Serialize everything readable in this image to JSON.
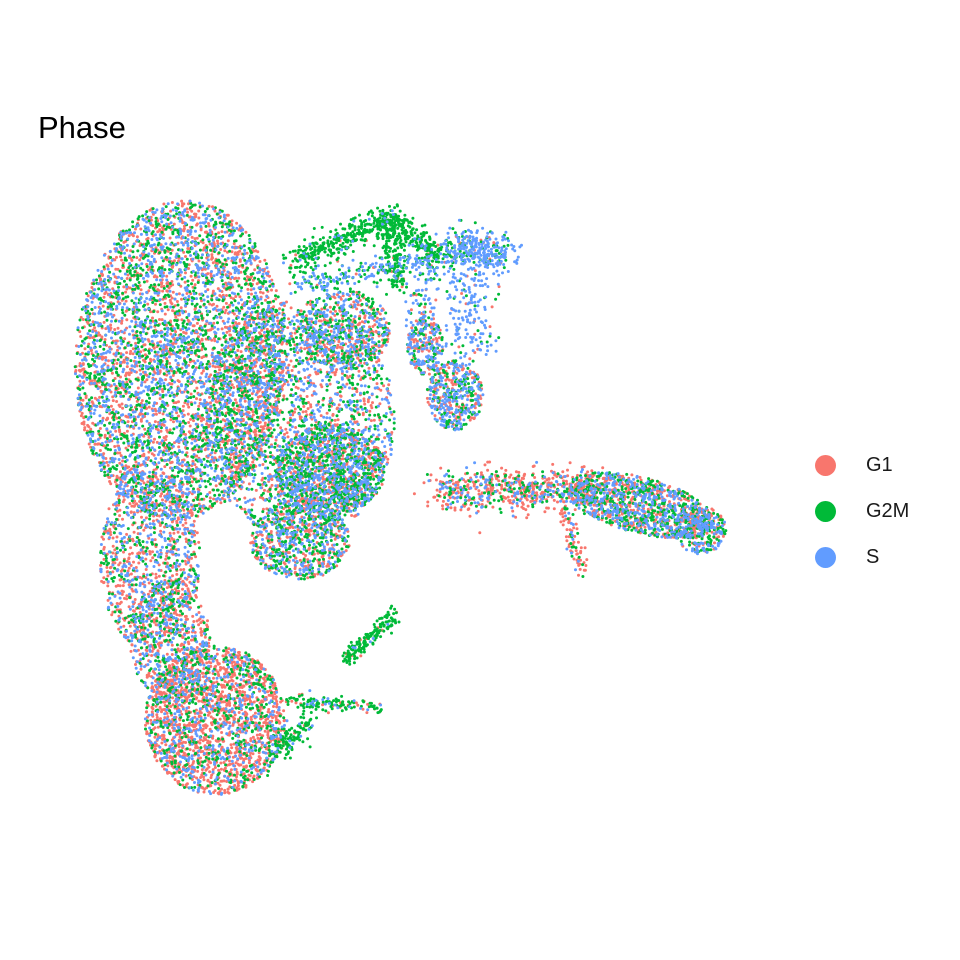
{
  "chart_data": {
    "type": "scatter",
    "title": "Phase",
    "xlabel": "",
    "ylabel": "",
    "grid": false,
    "axes_visible": false,
    "legend_position": "right",
    "series": [
      {
        "name": "G1",
        "color": "#F8766D"
      },
      {
        "name": "G2M",
        "color": "#00BA38"
      },
      {
        "name": "S",
        "color": "#619CFF"
      }
    ]
  }
}
